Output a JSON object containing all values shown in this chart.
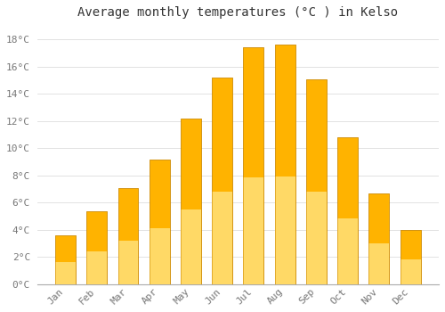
{
  "title": "Average monthly temperatures (°C ) in Kelso",
  "months": [
    "Jan",
    "Feb",
    "Mar",
    "Apr",
    "May",
    "Jun",
    "Jul",
    "Aug",
    "Sep",
    "Oct",
    "Nov",
    "Dec"
  ],
  "temperatures": [
    3.6,
    5.4,
    7.1,
    9.2,
    12.2,
    15.2,
    17.4,
    17.6,
    15.1,
    10.8,
    6.7,
    4.0
  ],
  "bar_color_top": "#FFB300",
  "bar_color_bottom": "#FFD966",
  "bar_edge_color": "#CC8800",
  "background_color": "#FFFFFF",
  "plot_bg_color": "#FFFFFF",
  "grid_color": "#DDDDDD",
  "ylim": [
    0,
    19
  ],
  "yticks": [
    0,
    2,
    4,
    6,
    8,
    10,
    12,
    14,
    16,
    18
  ],
  "title_fontsize": 10,
  "tick_fontsize": 8,
  "tick_color": "#777777",
  "font_family": "monospace",
  "bar_width": 0.65
}
